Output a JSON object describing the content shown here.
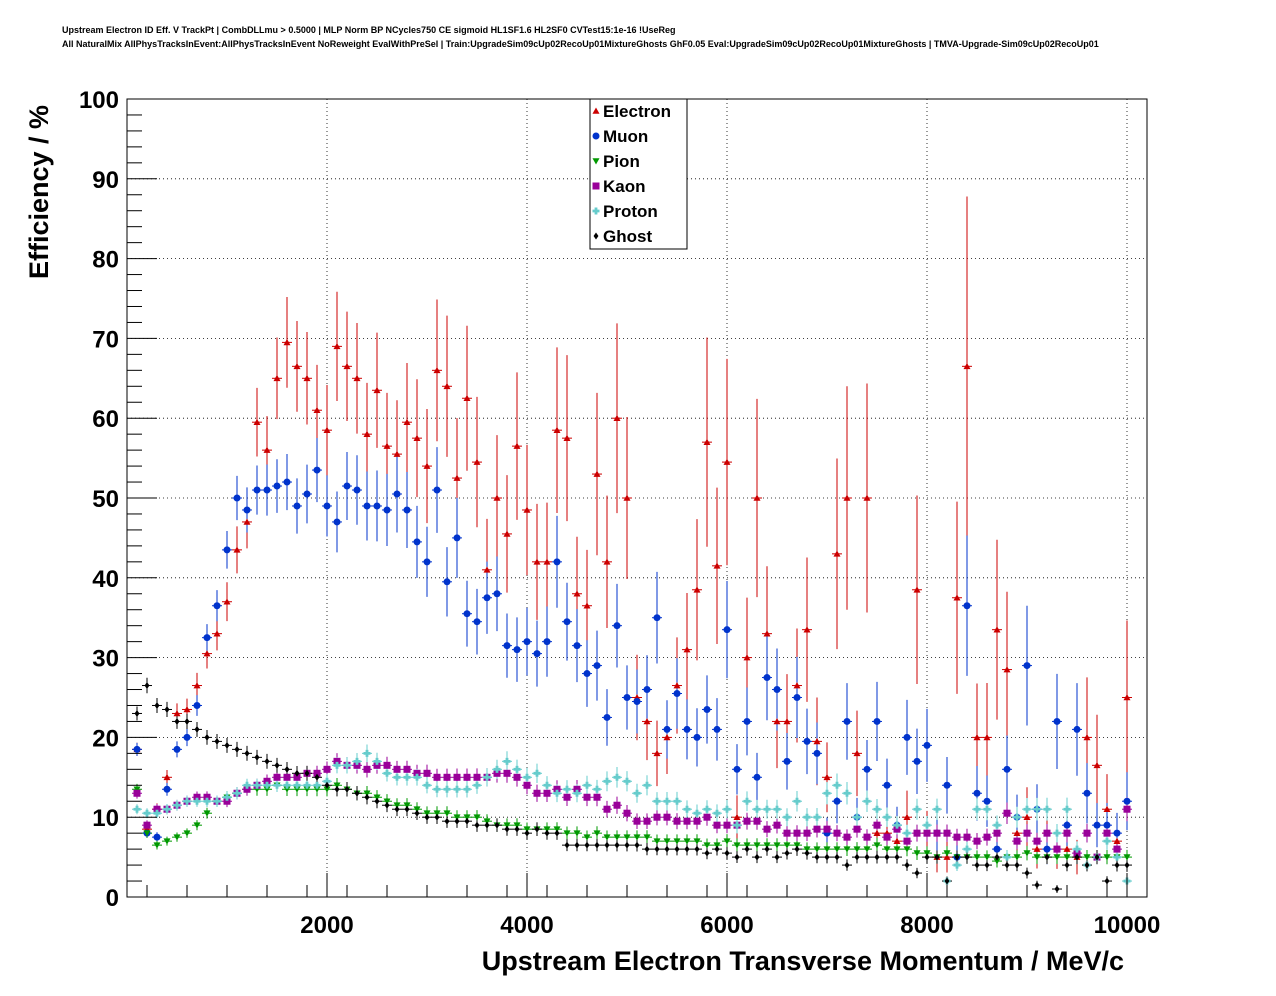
{
  "header": {
    "title_line1": "Upstream Electron ID Eff. V TrackPt | CombDLLmu > 0.5000 | MLP Norm BP NCycles750 CE sigmoid HL1SF1.6 HL2SF0 CVTest15:1e-16 !UseReg",
    "title_line2": "All NaturalMix AllPhysTracksInEvent:AllPhysTracksInEvent NoReweight EvalWithPreSel | Train:UpgradeSim09cUp02RecoUp01MixtureGhosts GhF0.05 Eval:UpgradeSim09cUp02RecoUp01MixtureGhosts | TMVA-Upgrade-Sim09cUp02RecoUp01"
  },
  "chart_data": {
    "type": "scatter",
    "xlabel": "Upstream Electron Transverse Momentum / MeV/c",
    "ylabel": "Efficiency / %",
    "xlim": [
      0,
      10200
    ],
    "ylim": [
      0,
      100
    ],
    "x_ticks": [
      2000,
      4000,
      6000,
      8000,
      10000
    ],
    "y_ticks": [
      0,
      10,
      20,
      30,
      40,
      50,
      60,
      70,
      80,
      90,
      100
    ],
    "grid": true,
    "legend_position": "top-center",
    "x": [
      100,
      200,
      300,
      400,
      500,
      600,
      700,
      800,
      900,
      1000,
      1100,
      1200,
      1300,
      1400,
      1500,
      1600,
      1700,
      1800,
      1900,
      2000,
      2100,
      2200,
      2300,
      2400,
      2500,
      2600,
      2700,
      2800,
      2900,
      3000,
      3100,
      3200,
      3300,
      3400,
      3500,
      3600,
      3700,
      3800,
      3900,
      4000,
      4100,
      4200,
      4300,
      4400,
      4500,
      4600,
      4700,
      4800,
      4900,
      5000,
      5100,
      5200,
      5300,
      5400,
      5500,
      5600,
      5700,
      5800,
      5900,
      6000,
      6100,
      6200,
      6300,
      6400,
      6500,
      6600,
      6700,
      6800,
      6900,
      7000,
      7100,
      7200,
      7300,
      7400,
      7500,
      7600,
      7700,
      7800,
      7900,
      8000,
      8100,
      8200,
      8300,
      8400,
      8500,
      8600,
      8700,
      8800,
      8900,
      9000,
      9100,
      9200,
      9300,
      9400,
      9500,
      9600,
      9700,
      9800,
      9900,
      10000
    ],
    "series": [
      {
        "name": "Electron",
        "color": "#cc0000",
        "marker": "triangle-up",
        "values": [
          18.5,
          8.5,
          11,
          15,
          23,
          23.5,
          26.5,
          30.5,
          33,
          37,
          43.5,
          47,
          59.5,
          56,
          65,
          69.5,
          66.5,
          65,
          61,
          58.5,
          69,
          66.5,
          65,
          58,
          63.5,
          56.5,
          55.5,
          59.5,
          57.5,
          54,
          66,
          64,
          52.5,
          62.5,
          54.5,
          41,
          50,
          45.5,
          56.5,
          48.5,
          42,
          42,
          58.5,
          57.5,
          38,
          36.5,
          53,
          42,
          60,
          50,
          25,
          22,
          18,
          20,
          26.5,
          31,
          38.5,
          57,
          41.5,
          54.5,
          10,
          30,
          50,
          33,
          22,
          22,
          26.5,
          33.5,
          19.5,
          15,
          43,
          50,
          18,
          50,
          8,
          8,
          7,
          10,
          38.5,
          8,
          5,
          5,
          37.5,
          66.5,
          20,
          20,
          33.5,
          28.5,
          8,
          10,
          6,
          8,
          6,
          6,
          5,
          20,
          16.5,
          11,
          7,
          25
        ]
      },
      {
        "name": "Muon",
        "color": "#0033cc",
        "marker": "circle",
        "values": [
          18.5,
          8,
          7.5,
          13.5,
          18.5,
          20,
          24,
          32.5,
          36.5,
          43.5,
          50,
          48.5,
          51,
          51,
          51.5,
          52,
          49,
          50.5,
          53.5,
          49,
          47,
          51.5,
          51,
          49,
          49,
          48.5,
          50.5,
          48.5,
          44.5,
          42,
          51,
          39.5,
          45,
          35.5,
          34.5,
          37.5,
          38,
          31.5,
          31,
          32,
          30.5,
          32,
          42,
          34.5,
          31.5,
          28,
          29,
          22.5,
          34,
          25,
          24.5,
          26,
          35,
          21,
          25.5,
          21,
          20,
          23.5,
          21,
          33.5,
          16,
          22,
          15,
          27.5,
          26,
          17,
          25,
          19.5,
          18,
          8,
          12,
          22,
          10,
          16,
          22,
          14,
          9,
          20,
          17,
          19,
          8,
          14,
          5,
          36.5,
          13,
          12,
          6,
          16,
          10,
          29,
          11,
          6,
          22,
          9,
          21,
          13,
          9,
          9,
          8,
          12
        ]
      },
      {
        "name": "Pion",
        "color": "#009900",
        "marker": "triangle-down",
        "values": [
          13.5,
          8,
          6.5,
          7,
          7.5,
          8,
          9,
          10.5,
          12,
          12.5,
          13,
          13.5,
          13.5,
          13.5,
          14,
          13.5,
          13.5,
          13.5,
          13.5,
          13.5,
          14,
          13.5,
          13,
          13,
          12.5,
          12,
          11.5,
          11.5,
          11,
          10.5,
          10.5,
          10.5,
          10,
          10,
          10,
          9.5,
          9,
          9,
          9,
          8.5,
          8.5,
          8.5,
          8.5,
          8,
          8,
          7.5,
          8,
          7.5,
          7.5,
          7.5,
          7.5,
          7.5,
          7,
          7,
          7,
          7,
          7,
          6.5,
          6.5,
          7,
          6.5,
          6.5,
          6.5,
          6.5,
          6.5,
          6.5,
          6.5,
          6,
          6,
          6,
          6,
          6,
          6,
          6,
          6.5,
          6,
          6,
          6,
          5.5,
          5.5,
          5,
          5.5,
          5,
          5,
          5,
          5,
          4.5,
          5,
          5,
          5.5,
          5,
          5,
          5,
          5,
          5,
          5,
          5,
          5,
          5,
          5
        ]
      },
      {
        "name": "Kaon",
        "color": "#990099",
        "marker": "square",
        "values": [
          13,
          9,
          11,
          11,
          11.5,
          12,
          12.5,
          12.5,
          12,
          12,
          13,
          13.5,
          14,
          14.5,
          15,
          15,
          15,
          15.5,
          15.5,
          16,
          17,
          16.5,
          16.5,
          16,
          16.5,
          16.5,
          16,
          16,
          15.5,
          15.5,
          15,
          15,
          15,
          15,
          15,
          15,
          15.5,
          15.5,
          15,
          14,
          13,
          13,
          13.5,
          12.5,
          13.5,
          12.5,
          12.5,
          11,
          11.5,
          10.5,
          9.5,
          9.5,
          10,
          10,
          9.5,
          9.5,
          9.5,
          10,
          9,
          9,
          9,
          9.5,
          9.5,
          8.5,
          9,
          8,
          8,
          8,
          8.5,
          8.5,
          8,
          7.5,
          8.5,
          7.5,
          9,
          7.5,
          8.5,
          7,
          8,
          8,
          8,
          8,
          7.5,
          7.5,
          7,
          7.5,
          8,
          10.5,
          7,
          8,
          7,
          8,
          6,
          8,
          5.5,
          8,
          5,
          8,
          6,
          11
        ]
      },
      {
        "name": "Proton",
        "color": "#66cccc",
        "marker": "cross",
        "values": [
          11,
          10.5,
          10.5,
          11,
          11.5,
          12,
          12,
          12,
          12,
          12.5,
          13,
          14,
          14,
          14,
          14,
          14,
          14,
          14,
          14,
          14.5,
          16.5,
          16.5,
          17,
          18,
          17,
          15.5,
          15,
          15,
          15,
          14,
          13.5,
          13.5,
          13.5,
          13.5,
          14,
          15,
          16,
          17,
          16,
          15,
          15.5,
          14,
          13,
          13.5,
          13,
          14,
          13.5,
          14.5,
          15,
          14.5,
          13,
          14,
          12,
          12,
          12,
          11,
          10.5,
          11,
          10.5,
          11,
          9,
          12,
          11,
          11,
          11,
          10,
          12,
          10,
          10,
          13,
          14,
          13,
          10,
          12,
          11,
          10,
          9,
          8,
          11,
          9,
          11,
          2,
          4,
          6,
          11,
          11,
          9,
          5,
          10,
          11,
          11,
          11,
          8,
          11,
          6,
          4,
          5,
          7,
          5,
          2
        ]
      },
      {
        "name": "Ghost",
        "color": "#000000",
        "marker": "diamond",
        "values": [
          23,
          26.5,
          24,
          23.5,
          22,
          22,
          21,
          20,
          19.5,
          19,
          18.5,
          18,
          17.5,
          17,
          16.5,
          16,
          15.5,
          15.5,
          15,
          14,
          13.5,
          13.5,
          13,
          12.5,
          12,
          11.5,
          11,
          11,
          10.5,
          10,
          10,
          9.5,
          9.5,
          9.5,
          9,
          9,
          9,
          8.5,
          8.5,
          8,
          8.5,
          8,
          8,
          6.5,
          6.5,
          6.5,
          6.5,
          6.5,
          6.5,
          6.5,
          6.5,
          6,
          6,
          6,
          6,
          6,
          6,
          5.5,
          6,
          5.5,
          5,
          6,
          5,
          6,
          5,
          5.5,
          6,
          5.5,
          5,
          5,
          5,
          4,
          5,
          5,
          5,
          5,
          5,
          4,
          3,
          5,
          5,
          2,
          5,
          5,
          4,
          4,
          5,
          4,
          4,
          3,
          1.5,
          5,
          1,
          4,
          5,
          4,
          5,
          2,
          4,
          4
        ]
      }
    ]
  }
}
